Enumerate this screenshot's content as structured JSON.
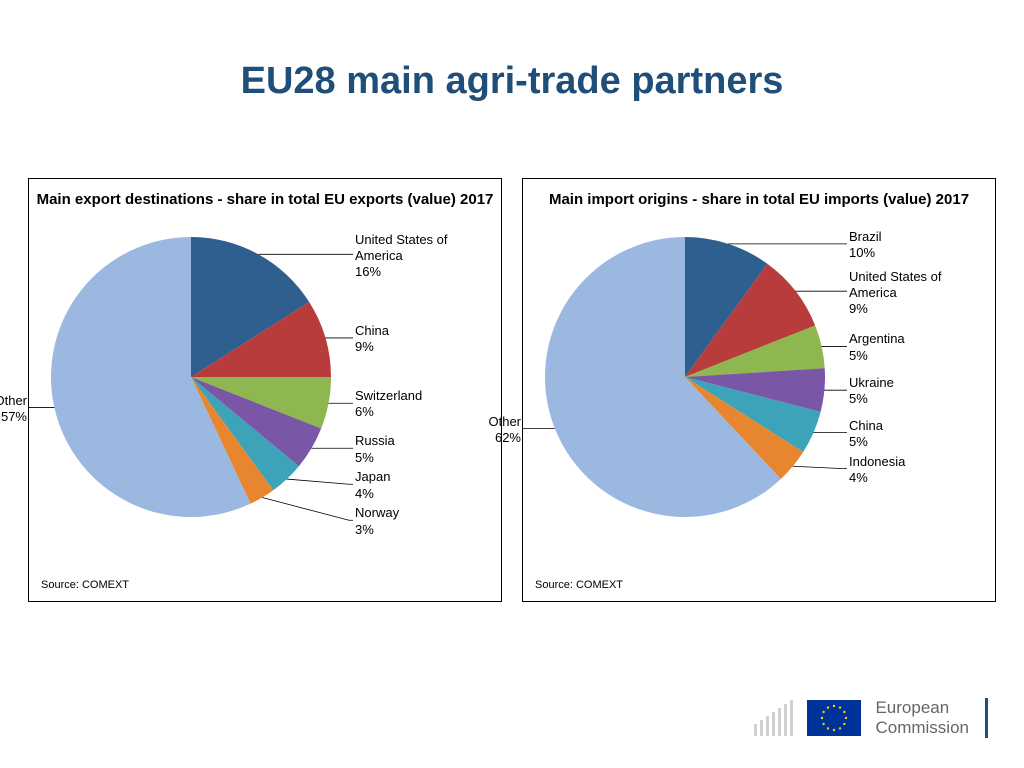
{
  "title": "EU28 main agri-trade partners",
  "source_label": "Source: COMEXT",
  "logo": {
    "line1": "European",
    "line2": "Commission"
  },
  "pie_style": {
    "radius": 140,
    "label_fontsize": 13,
    "title_fontsize": 15,
    "leader_color": "#000000",
    "border_color": "#000000"
  },
  "charts": [
    {
      "title": "Main export destinations - share in total EU exports (value) 2017",
      "type": "pie",
      "start_angle_deg": -90,
      "slices": [
        {
          "label": "United States of\nAmerica",
          "value": 16,
          "color": "#2f5f8f"
        },
        {
          "label": "China",
          "value": 9,
          "color": "#b93c3c"
        },
        {
          "label": "Switzerland",
          "value": 6,
          "color": "#8fb74f"
        },
        {
          "label": "Russia",
          "value": 5,
          "color": "#7a56a6"
        },
        {
          "label": "Japan",
          "value": 4,
          "color": "#3ca3b9"
        },
        {
          "label": "Norway",
          "value": 3,
          "color": "#e8852f"
        },
        {
          "label": "Other",
          "value": 57,
          "color": "#9bb8e0"
        }
      ]
    },
    {
      "title": "Main import origins - share in total EU imports (value) 2017",
      "type": "pie",
      "start_angle_deg": -90,
      "slices": [
        {
          "label": "Brazil",
          "value": 10,
          "color": "#2f5f8f"
        },
        {
          "label": "United States of\nAmerica",
          "value": 9,
          "color": "#b93c3c"
        },
        {
          "label": "Argentina",
          "value": 5,
          "color": "#8fb74f"
        },
        {
          "label": "Ukraine",
          "value": 5,
          "color": "#7a56a6"
        },
        {
          "label": "China",
          "value": 5,
          "color": "#3ca3b9"
        },
        {
          "label": "Indonesia",
          "value": 4,
          "color": "#e8852f"
        },
        {
          "label": "Other",
          "value": 62,
          "color": "#9bb8e0"
        }
      ]
    }
  ]
}
